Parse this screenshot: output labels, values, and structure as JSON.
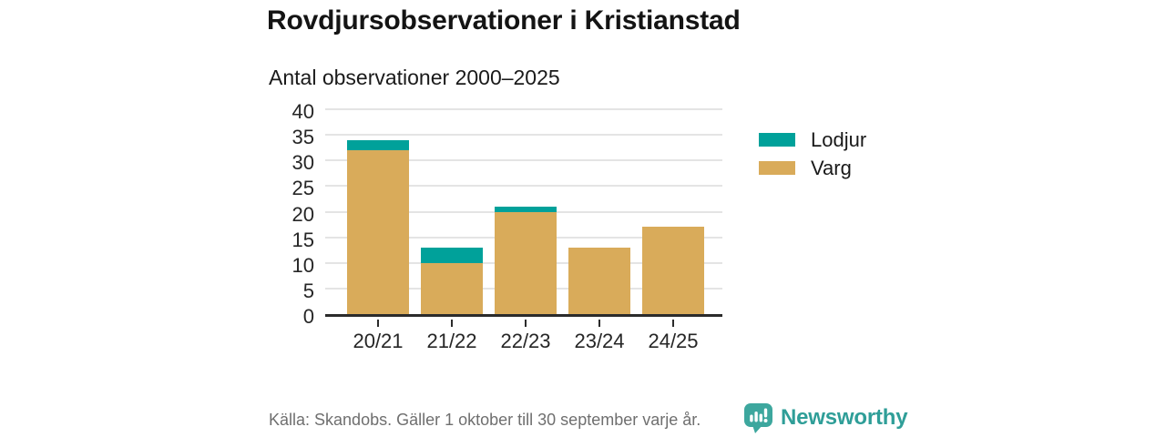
{
  "chart_data": {
    "type": "bar",
    "stacked": true,
    "title": "Rovdjursobservationer i Kristianstad",
    "subtitle": "Antal observationer 2000–2025",
    "categories": [
      "20/21",
      "21/22",
      "22/23",
      "23/24",
      "24/25"
    ],
    "series": [
      {
        "name": "Lodjur",
        "color": "#00a19a",
        "values": [
          2,
          3,
          1,
          0,
          0
        ]
      },
      {
        "name": "Varg",
        "color": "#d9ab5a",
        "values": [
          32,
          10,
          20,
          13,
          17
        ]
      }
    ],
    "totals": [
      34,
      13,
      21,
      13,
      17
    ],
    "ylim": [
      0,
      40
    ],
    "yticks": [
      0,
      5,
      10,
      15,
      20,
      25,
      30,
      35,
      40
    ],
    "xlabel": "",
    "ylabel": "",
    "grid": true,
    "legend_position": "right",
    "colors": {
      "gridline": "#e4e4e4",
      "axis_line": "#2b2b2b",
      "tick_text": "#262626"
    }
  },
  "footer": {
    "source": "Källa: Skandobs. Gäller 1 oktober till 30 september varje år.",
    "brand": "Newsworthy",
    "brand_color": "#2f9e98",
    "logo_icon": "bar-chart-speech-bubble-icon"
  }
}
